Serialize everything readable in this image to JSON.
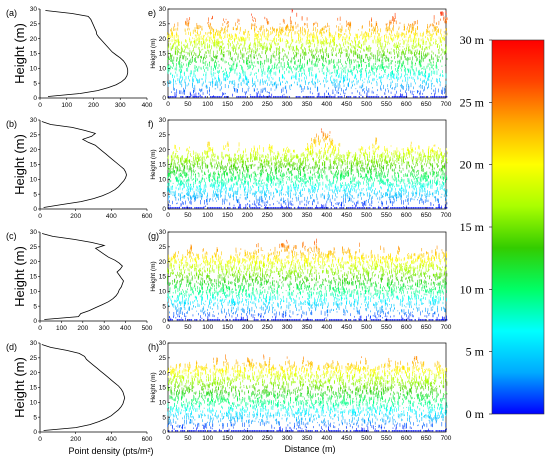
{
  "colorbar": {
    "ticks": [
      "30 m",
      "25 m",
      "20 m",
      "15 m",
      "10 m",
      "5 m",
      "0 m"
    ],
    "stops": [
      "#0000ff",
      "#00aaff",
      "#00ffff",
      "#00ff66",
      "#33cc00",
      "#aaff00",
      "#ffff00",
      "#ffaa00",
      "#ff4400",
      "#ff0000"
    ]
  },
  "xlabel_density": "Point density (pts/m²)",
  "xlabel_distance": "Distance (m)",
  "chart_data": [
    {
      "type": "line",
      "panel": "(a)",
      "ylabel": "Height (m)",
      "xticks": [
        "0",
        "100",
        "200",
        "300",
        "400"
      ],
      "yticks": [
        "0",
        "5",
        "10",
        "15",
        "20",
        "25",
        "30"
      ],
      "xlim": [
        0,
        400
      ],
      "ylim": [
        0,
        30
      ],
      "density": [
        30,
        150,
        215,
        255,
        285,
        305,
        318,
        325,
        328,
        328,
        325,
        320,
        312,
        300,
        285,
        270,
        260,
        250,
        240,
        230,
        220,
        212,
        210,
        205,
        200,
        195,
        190,
        180,
        120,
        20
      ],
      "heights": [
        0.5,
        1.5,
        2.5,
        3.5,
        4.5,
        5.5,
        6.5,
        7.5,
        8.5,
        9.5,
        10.5,
        11.5,
        12.5,
        13.5,
        14.5,
        15.5,
        16.5,
        17.5,
        18.5,
        19.5,
        20.5,
        21.5,
        22.5,
        23.5,
        24.5,
        25.5,
        26.5,
        27.5,
        28.5,
        29.5
      ]
    },
    {
      "type": "line",
      "panel": "(b)",
      "ylabel": "Height (m)",
      "xticks": [
        "0",
        "200",
        "400",
        "600"
      ],
      "yticks": [
        "0",
        "5",
        "10",
        "15",
        "20",
        "25",
        "30"
      ],
      "xlim": [
        0,
        600
      ],
      "ylim": [
        0,
        30
      ],
      "density": [
        20,
        120,
        230,
        300,
        350,
        390,
        420,
        440,
        455,
        470,
        480,
        485,
        480,
        470,
        450,
        430,
        410,
        390,
        370,
        350,
        330,
        310,
        270,
        240,
        290,
        310,
        250,
        180,
        60,
        10
      ],
      "heights": [
        0.5,
        1.5,
        2.5,
        3.5,
        4.5,
        5.5,
        6.5,
        7.5,
        8.5,
        9.5,
        10.5,
        11.5,
        12.5,
        13.5,
        14.5,
        15.5,
        16.5,
        17.5,
        18.5,
        19.5,
        20.5,
        21.5,
        22.5,
        23.5,
        24.5,
        25.5,
        26.5,
        27.5,
        28.5,
        29.5
      ]
    },
    {
      "type": "line",
      "panel": "(c)",
      "ylabel": "Height (m)",
      "xticks": [
        "0",
        "100",
        "200",
        "300",
        "400",
        "500"
      ],
      "yticks": [
        "0",
        "5",
        "10",
        "15",
        "20",
        "25",
        "30"
      ],
      "xlim": [
        0,
        500
      ],
      "ylim": [
        0,
        30
      ],
      "density": [
        20,
        180,
        190,
        230,
        260,
        290,
        320,
        340,
        355,
        365,
        370,
        380,
        385,
        390,
        380,
        370,
        360,
        375,
        385,
        370,
        350,
        320,
        300,
        280,
        260,
        300,
        240,
        160,
        60,
        10
      ],
      "heights": [
        0.5,
        1.5,
        2.5,
        3.5,
        4.5,
        5.5,
        6.5,
        7.5,
        8.5,
        9.5,
        10.5,
        11.5,
        12.5,
        13.5,
        14.5,
        15.5,
        16.5,
        17.5,
        18.5,
        19.5,
        20.5,
        21.5,
        22.5,
        23.5,
        24.5,
        25.5,
        26.5,
        27.5,
        28.5,
        29.5
      ]
    },
    {
      "type": "line",
      "panel": "(d)",
      "ylabel": "Height (m)",
      "xticks": [
        "0",
        "200",
        "400",
        "600"
      ],
      "yticks": [
        "0",
        "5",
        "10",
        "15",
        "20",
        "25",
        "30"
      ],
      "xlim": [
        0,
        600
      ],
      "ylim": [
        0,
        30
      ],
      "density": [
        20,
        200,
        280,
        330,
        370,
        400,
        420,
        440,
        455,
        465,
        470,
        475,
        470,
        465,
        455,
        440,
        420,
        400,
        380,
        360,
        340,
        320,
        300,
        280,
        260,
        250,
        220,
        150,
        60,
        10
      ],
      "heights": [
        0.5,
        1.5,
        2.5,
        3.5,
        4.5,
        5.5,
        6.5,
        7.5,
        8.5,
        9.5,
        10.5,
        11.5,
        12.5,
        13.5,
        14.5,
        15.5,
        16.5,
        17.5,
        18.5,
        19.5,
        20.5,
        21.5,
        22.5,
        23.5,
        24.5,
        25.5,
        26.5,
        27.5,
        28.5,
        29.5
      ]
    },
    {
      "type": "scatter",
      "panel": "e)",
      "ylabel": "Height (m)",
      "xticks": [
        "0",
        "50",
        "100",
        "150",
        "200",
        "250",
        "300",
        "350",
        "400",
        "450",
        "500",
        "550",
        "600",
        "650",
        "700"
      ],
      "yticks": [
        "0",
        "5",
        "10",
        "15",
        "20",
        "25",
        "30"
      ],
      "xlim": [
        0,
        700
      ],
      "ylim": [
        0,
        30
      ],
      "canopy_top": [
        22,
        24,
        21,
        26,
        23,
        25,
        22,
        27,
        24,
        23,
        26,
        22,
        25,
        24,
        21,
        27,
        23,
        26,
        22,
        24,
        25,
        23,
        28,
        24,
        26,
        22,
        25,
        23,
        24,
        22,
        26,
        23,
        25,
        21,
        24,
        23,
        26,
        24,
        22,
        25,
        27,
        24,
        23,
        26,
        25,
        22,
        24,
        26,
        25,
        28
      ]
    },
    {
      "type": "scatter",
      "panel": "f)",
      "ylabel": "Height (m)",
      "xticks": [
        "0",
        "50",
        "100",
        "150",
        "200",
        "250",
        "300",
        "350",
        "400",
        "450",
        "500",
        "550",
        "600",
        "650",
        "700"
      ],
      "yticks": [
        "0",
        "5",
        "10",
        "15",
        "20",
        "25",
        "30"
      ],
      "xlim": [
        0,
        700
      ],
      "ylim": [
        0,
        30
      ],
      "canopy_top": [
        18,
        20,
        17,
        21,
        19,
        18,
        20,
        22,
        19,
        18,
        21,
        17,
        20,
        19,
        18,
        21,
        20,
        19,
        22,
        18,
        20,
        21,
        19,
        18,
        20,
        22,
        24,
        26,
        25,
        23,
        21,
        19,
        20,
        18,
        21,
        19,
        20,
        22,
        19,
        21,
        18,
        20,
        19,
        21,
        20,
        18,
        19,
        21,
        20,
        19
      ]
    },
    {
      "type": "scatter",
      "panel": "(g)",
      "ylabel": "Height (m)",
      "xticks": [
        "0",
        "50",
        "100",
        "150",
        "200",
        "250",
        "300",
        "350",
        "400",
        "450",
        "500",
        "550",
        "600",
        "650",
        "700"
      ],
      "yticks": [
        "0",
        "5",
        "10",
        "15",
        "20",
        "25",
        "30"
      ],
      "xlim": [
        0,
        700
      ],
      "ylim": [
        0,
        30
      ],
      "canopy_top": [
        22,
        24,
        21,
        23,
        25,
        22,
        24,
        21,
        23,
        22,
        20,
        21,
        23,
        22,
        24,
        23,
        25,
        22,
        24,
        23,
        25,
        26,
        24,
        23,
        26,
        25,
        27,
        24,
        23,
        25,
        22,
        24,
        23,
        22,
        24,
        21,
        23,
        22,
        24,
        23,
        22,
        24,
        21,
        23,
        22,
        24,
        23,
        22,
        24,
        23
      ]
    },
    {
      "type": "scatter",
      "panel": "(h)",
      "ylabel": "Height (m)",
      "xticks": [
        "0",
        "50",
        "100",
        "150",
        "200",
        "250",
        "300",
        "350",
        "400",
        "450",
        "500",
        "550",
        "600",
        "650",
        "700"
      ],
      "yticks": [
        "0",
        "5",
        "10",
        "15",
        "20",
        "25",
        "30"
      ],
      "xlim": [
        0,
        700
      ],
      "ylim": [
        0,
        30
      ],
      "canopy_top": [
        21,
        23,
        22,
        24,
        21,
        23,
        22,
        20,
        23,
        22,
        24,
        21,
        23,
        22,
        25,
        23,
        22,
        24,
        23,
        21,
        22,
        24,
        23,
        22,
        24,
        23,
        21,
        22,
        24,
        23,
        22,
        21,
        23,
        22,
        24,
        23,
        22,
        21,
        23,
        24,
        22,
        23,
        21,
        22,
        24,
        23,
        22,
        21,
        23,
        22
      ]
    }
  ]
}
